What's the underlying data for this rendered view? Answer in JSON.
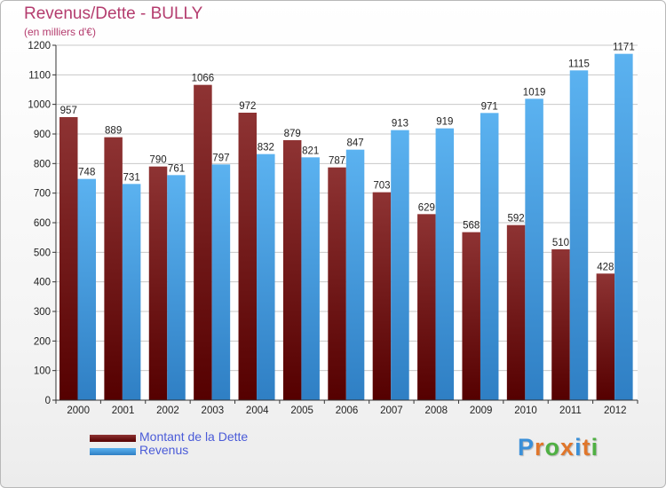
{
  "title": "Revenus/Dette - BULLY",
  "subtitle": "(en milliers d'€)",
  "logo": "Proxiti",
  "colors": {
    "series_dette": "#7a1a1a",
    "series_revenus": "#4aa3e8",
    "title": "#b43c6e",
    "legend_text": "#4a5bd8"
  },
  "chart_data": {
    "type": "bar",
    "title": "Revenus/Dette - BULLY",
    "subtitle": "(en milliers d'€)",
    "categories": [
      "2000",
      "2001",
      "2002",
      "2003",
      "2004",
      "2005",
      "2006",
      "2007",
      "2008",
      "2009",
      "2010",
      "2011",
      "2012"
    ],
    "series": [
      {
        "name": "Montant de la Dette",
        "values": [
          957,
          889,
          790,
          1066,
          972,
          879,
          787,
          703,
          629,
          568,
          592,
          510,
          428
        ]
      },
      {
        "name": "Revenus",
        "values": [
          748,
          731,
          761,
          797,
          832,
          821,
          847,
          913,
          919,
          971,
          1019,
          1115,
          1171
        ]
      }
    ],
    "ylim": [
      0,
      1200
    ],
    "yticks": [
      0,
      100,
      200,
      300,
      400,
      500,
      600,
      700,
      800,
      900,
      1000,
      1100,
      1200
    ],
    "grid": true,
    "legend_position": "bottom-left"
  }
}
